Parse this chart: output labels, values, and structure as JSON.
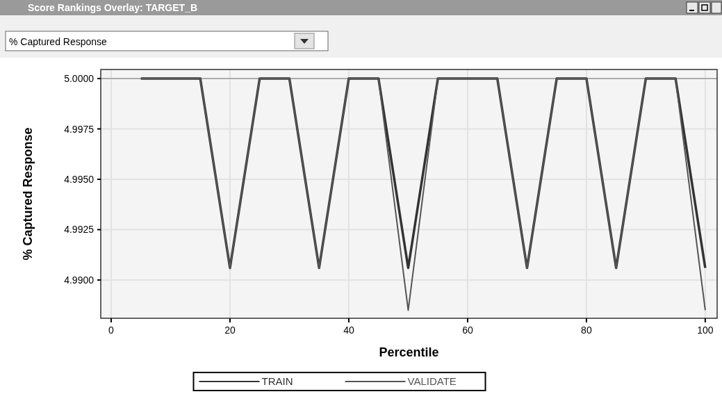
{
  "chart_data": {
    "type": "line",
    "title": "Score Rankings Overlay: TARGET_B",
    "subtitle": "% Captured Response",
    "xlabel": "Percentile",
    "ylabel": "% Captured Response",
    "x": [
      5,
      10,
      15,
      20,
      25,
      30,
      35,
      40,
      45,
      50,
      55,
      60,
      65,
      70,
      75,
      80,
      85,
      90,
      95,
      100
    ],
    "series": [
      {
        "name": "TRAIN",
        "color": "#333333",
        "values": [
          5,
          5,
          5,
          4.9906,
          5,
          5,
          4.9906,
          5,
          5,
          4.9906,
          5,
          5,
          5,
          4.9906,
          5,
          5,
          4.9906,
          5,
          5,
          4.9906
        ]
      },
      {
        "name": "VALIDATE",
        "color": "#555555",
        "values": [
          5,
          5,
          5,
          4.9906,
          5,
          5,
          4.9906,
          5,
          5,
          4.9885,
          5,
          5,
          5,
          4.9906,
          5,
          5,
          4.9906,
          5,
          5,
          4.9885
        ]
      }
    ],
    "xlim": [
      -1.75,
      102
    ],
    "xticks": [
      0,
      20,
      40,
      60,
      80,
      100
    ],
    "ylim": [
      4.9881,
      5.00045
    ],
    "yticks": [
      {
        "value": 4.99,
        "label": "4.9900"
      },
      {
        "value": 4.9925,
        "label": "4.9925"
      },
      {
        "value": 4.995,
        "label": "4.9950"
      },
      {
        "value": 4.9975,
        "label": "4.9975"
      },
      {
        "value": 5,
        "label": "5.0000"
      }
    ],
    "ref_lines": [
      {
        "axis": "y",
        "value": 5,
        "label": null,
        "color": "#777777"
      }
    ],
    "grid": true,
    "legend": "bottom",
    "marker": "none",
    "line_style": "solid"
  }
}
